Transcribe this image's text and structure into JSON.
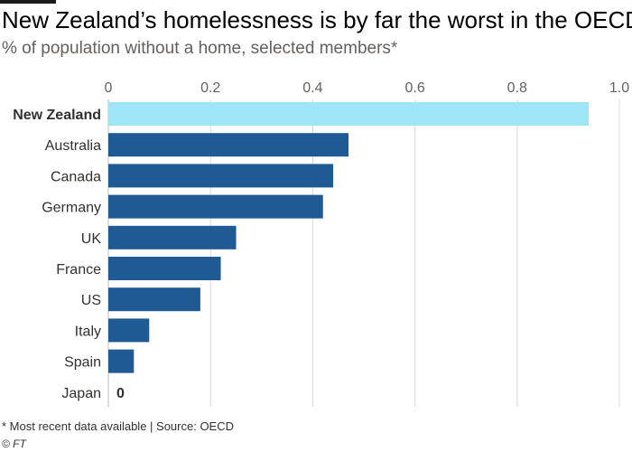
{
  "header": {
    "title": "New Zealand’s homelessness is by far the worst in the OECD",
    "subtitle": "% of population without a home, selected members*"
  },
  "footer": {
    "note": "* Most recent data available | Source: OECD",
    "credit": "© FT"
  },
  "colors": {
    "highlight": "#9ee6f5",
    "bar": "#1f5a94",
    "grid": "#d9d9d9",
    "zero_line": "#bfbfbf",
    "tick_text": "#66605c",
    "label_text": "#33302e"
  },
  "chart_data": {
    "type": "bar",
    "orientation": "horizontal",
    "title": "New Zealand’s homelessness is by far the worst in the OECD",
    "subtitle": "% of population without a home, selected members*",
    "xlabel": "",
    "ylabel": "",
    "xlim": [
      0,
      1.0
    ],
    "ticks": [
      0,
      0.2,
      0.4,
      0.6,
      0.8,
      1.0
    ],
    "tick_labels": [
      "0",
      "0.2",
      "0.4",
      "0.6",
      "0.8",
      "1.0"
    ],
    "tick_position": "top",
    "grid": true,
    "categories": [
      "New Zealand",
      "Australia",
      "Canada",
      "Germany",
      "UK",
      "France",
      "US",
      "Italy",
      "Spain",
      "Japan"
    ],
    "values": [
      0.94,
      0.47,
      0.44,
      0.42,
      0.25,
      0.22,
      0.18,
      0.08,
      0.05,
      0
    ],
    "highlight": "New Zealand",
    "annotations": [
      {
        "category": "Japan",
        "text": "0"
      }
    ]
  }
}
